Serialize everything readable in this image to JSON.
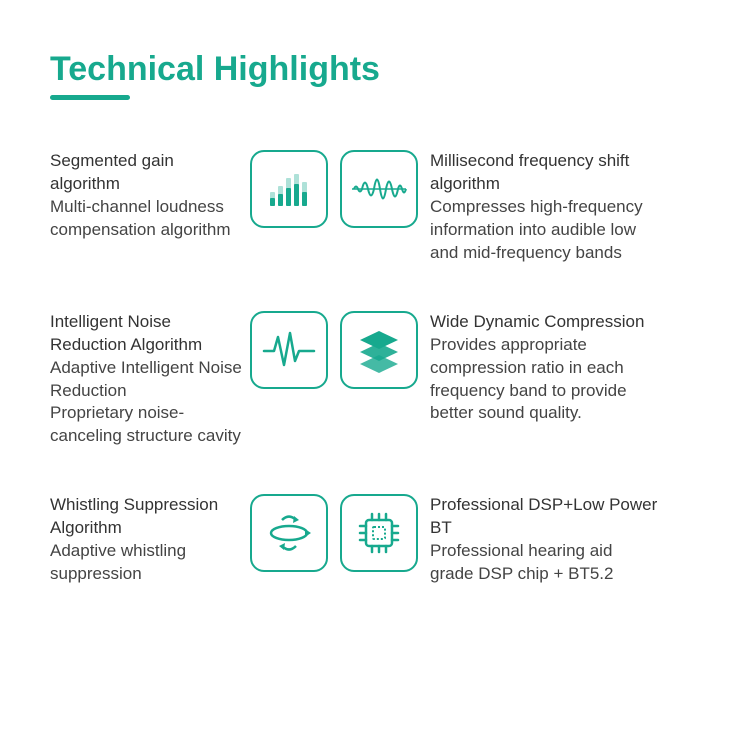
{
  "colors": {
    "accent": "#17a98e",
    "text_body": "#3a3a3a",
    "bg": "#ffffff"
  },
  "heading": {
    "text": "Technical Highlights",
    "fontsize": 34,
    "fontweight": 700,
    "underline_width": 80,
    "underline_height": 5
  },
  "features": [
    {
      "left": {
        "title": "Segmented gain algorithm",
        "desc": "Multi-channel loudness compensation algorithm",
        "icon": "equalizer-bars"
      },
      "right": {
        "title": "Millisecond frequency shift algorithm",
        "desc": "Compresses high-frequency information into audible low and mid-frequency bands",
        "icon": "sine-wave"
      }
    },
    {
      "left": {
        "title": "Intelligent Noise Reduction Algorithm",
        "desc": "Adaptive Intelligent Noise Reduction\nProprietary noise-canceling structure cavity",
        "icon": "ecg-pulse"
      },
      "right": {
        "title": "Wide Dynamic Compression",
        "desc": "Provides appropriate compression ratio in each frequency band to provide better sound quality.",
        "icon": "stacked-layers"
      }
    },
    {
      "left": {
        "title": "Whistling Suppression Algorithm",
        "desc": "Adaptive whistling suppression",
        "icon": "rotate-swap"
      },
      "right": {
        "title": "Professional DSP+Low Power BT",
        "desc": "Professional hearing aid grade DSP chip + BT5.2",
        "icon": "cpu-chip"
      }
    }
  ],
  "icon_box": {
    "size": 78,
    "radius": 14,
    "border_width": 2,
    "border_color": "#17a98e",
    "icon_color": "#17a98e"
  }
}
